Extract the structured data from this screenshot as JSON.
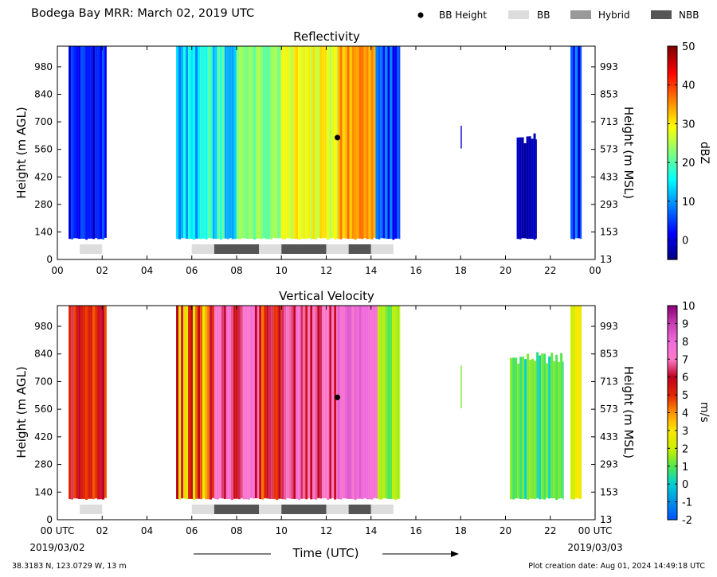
{
  "header": {
    "title": "Bodega Bay MRR:  March 02, 2019 UTC",
    "legend": [
      {
        "label": "BB Height",
        "kind": "marker",
        "color": "#000000"
      },
      {
        "label": "BB",
        "kind": "box",
        "color": "#dddddd"
      },
      {
        "label": "Hybrid",
        "kind": "box",
        "color": "#999999"
      },
      {
        "label": "NBB",
        "kind": "box",
        "color": "#555555"
      }
    ]
  },
  "footer": {
    "location": "38.3183 N, 123.0729 W, 13 m",
    "created": "Plot creation date: Aug 01, 2024 14:49:18 UTC",
    "xlabel": "Time (UTC)",
    "start_date": "2019/03/02",
    "end_date": "2019/03/03"
  },
  "chart_data": [
    {
      "type": "heatmap",
      "title": "Reflectivity",
      "ylabel_left": "Height (m AGL)",
      "ylabel_right": "Height (m MSL)",
      "xlabel": "",
      "x_ticks": [
        "00",
        "02",
        "04",
        "06",
        "08",
        "10",
        "12",
        "14",
        "16",
        "18",
        "20",
        "22",
        "00"
      ],
      "x_range_hours": [
        0,
        24
      ],
      "y_ticks_left": [
        0,
        140,
        280,
        420,
        560,
        700,
        840,
        980
      ],
      "y_ticks_right": [
        13,
        153,
        293,
        433,
        573,
        713,
        853,
        993
      ],
      "ylim": [
        0,
        1085
      ],
      "colorbar": {
        "label": "dBZ",
        "min": -5,
        "max": 50,
        "ticks": [
          0,
          10,
          20,
          30,
          40,
          50
        ],
        "colormap": "jet"
      },
      "bb_height_marker": {
        "time_h": 12.5,
        "height_m": 620
      },
      "bb_classification": [
        {
          "start_h": 1.0,
          "end_h": 2.0,
          "type": "BB"
        },
        {
          "start_h": 6.0,
          "end_h": 7.0,
          "type": "BB"
        },
        {
          "start_h": 7.0,
          "end_h": 9.0,
          "type": "NBB"
        },
        {
          "start_h": 9.0,
          "end_h": 10.0,
          "type": "BB"
        },
        {
          "start_h": 10.0,
          "end_h": 12.0,
          "type": "NBB"
        },
        {
          "start_h": 12.0,
          "end_h": 13.0,
          "type": "BB"
        },
        {
          "start_h": 13.0,
          "end_h": 14.0,
          "type": "NBB"
        },
        {
          "start_h": 14.0,
          "end_h": 15.0,
          "type": "BB"
        }
      ],
      "precip_segments": [
        {
          "start_h": 0.5,
          "end_h": 2.2,
          "top_m": 1085,
          "bottom_m": 100,
          "low": -2,
          "high": 8
        },
        {
          "start_h": 5.3,
          "end_h": 6.5,
          "top_m": 1085,
          "bottom_m": 100,
          "low": 8,
          "high": 18
        },
        {
          "start_h": 6.5,
          "end_h": 8.0,
          "top_m": 1085,
          "bottom_m": 100,
          "low": 10,
          "high": 22
        },
        {
          "start_h": 8.0,
          "end_h": 10.0,
          "top_m": 1085,
          "bottom_m": 100,
          "low": 20,
          "high": 25
        },
        {
          "start_h": 10.0,
          "end_h": 12.5,
          "top_m": 1085,
          "bottom_m": 100,
          "low": 25,
          "high": 32
        },
        {
          "start_h": 12.5,
          "end_h": 14.2,
          "top_m": 1085,
          "bottom_m": 100,
          "low": 30,
          "high": 38
        },
        {
          "start_h": 14.2,
          "end_h": 15.3,
          "top_m": 1085,
          "bottom_m": 100,
          "low": 0,
          "high": 10
        },
        {
          "start_h": 18.0,
          "end_h": 18.05,
          "top_m": 680,
          "bottom_m": 560,
          "low": -3,
          "high": -1
        },
        {
          "start_h": 20.5,
          "end_h": 21.4,
          "top_m": 620,
          "bottom_m": 100,
          "low": -3,
          "high": -1
        },
        {
          "start_h": 22.9,
          "end_h": 23.4,
          "top_m": 1085,
          "bottom_m": 100,
          "low": -2,
          "high": 12
        }
      ]
    },
    {
      "type": "heatmap",
      "title": "Vertical Velocity",
      "ylabel_left": "Height (m AGL)",
      "ylabel_right": "Height (m MSL)",
      "xlabel": "Time (UTC)",
      "x_ticks": [
        "00 UTC",
        "02",
        "04",
        "06",
        "08",
        "10",
        "12",
        "14",
        "16",
        "18",
        "20",
        "22",
        "00 UTC"
      ],
      "x_range_hours": [
        0,
        24
      ],
      "y_ticks_left": [
        0,
        140,
        280,
        420,
        560,
        700,
        840,
        980
      ],
      "y_ticks_right": [
        13,
        153,
        293,
        433,
        573,
        713,
        853,
        993
      ],
      "ylim": [
        0,
        1085
      ],
      "colorbar": {
        "label": "m/s",
        "min": -2,
        "max": 10,
        "ticks": [
          -2,
          -1,
          0,
          1,
          2,
          3,
          4,
          5,
          6,
          7,
          8,
          9,
          10
        ],
        "colormap": "velocity"
      },
      "bb_height_marker": {
        "time_h": 12.5,
        "height_m": 620
      },
      "bb_classification": [
        {
          "start_h": 1.0,
          "end_h": 2.0,
          "type": "BB"
        },
        {
          "start_h": 6.0,
          "end_h": 7.0,
          "type": "BB"
        },
        {
          "start_h": 7.0,
          "end_h": 9.0,
          "type": "NBB"
        },
        {
          "start_h": 9.0,
          "end_h": 10.0,
          "type": "BB"
        },
        {
          "start_h": 10.0,
          "end_h": 12.0,
          "type": "NBB"
        },
        {
          "start_h": 12.0,
          "end_h": 13.0,
          "type": "BB"
        },
        {
          "start_h": 13.0,
          "end_h": 14.0,
          "type": "NBB"
        },
        {
          "start_h": 14.0,
          "end_h": 15.0,
          "type": "BB"
        }
      ],
      "precip_segments": [
        {
          "start_h": 0.5,
          "end_h": 2.2,
          "top_m": 1085,
          "bottom_m": 100,
          "low": 4.5,
          "high": 6.5
        },
        {
          "start_h": 5.3,
          "end_h": 7.0,
          "top_m": 1085,
          "bottom_m": 100,
          "low": 2,
          "high": 6.5
        },
        {
          "start_h": 7.0,
          "end_h": 9.0,
          "top_m": 1085,
          "bottom_m": 100,
          "low": 5.5,
          "high": 8
        },
        {
          "start_h": 9.0,
          "end_h": 10.0,
          "top_m": 1085,
          "bottom_m": 100,
          "low": 3,
          "high": 7
        },
        {
          "start_h": 10.0,
          "end_h": 12.5,
          "top_m": 1085,
          "bottom_m": 100,
          "low": 5.5,
          "high": 8
        },
        {
          "start_h": 12.5,
          "end_h": 14.3,
          "top_m": 1085,
          "bottom_m": 100,
          "low": 7,
          "high": 8.5
        },
        {
          "start_h": 14.3,
          "end_h": 15.3,
          "top_m": 1085,
          "bottom_m": 100,
          "low": 0.8,
          "high": 2
        },
        {
          "start_h": 18.0,
          "end_h": 18.05,
          "top_m": 780,
          "bottom_m": 560,
          "low": 0.8,
          "high": 1.5
        },
        {
          "start_h": 20.2,
          "end_h": 22.6,
          "top_m": 820,
          "bottom_m": 100,
          "low": 0,
          "high": 1.5
        },
        {
          "start_h": 22.9,
          "end_h": 23.4,
          "top_m": 1085,
          "bottom_m": 100,
          "low": 2,
          "high": 3
        }
      ]
    }
  ]
}
